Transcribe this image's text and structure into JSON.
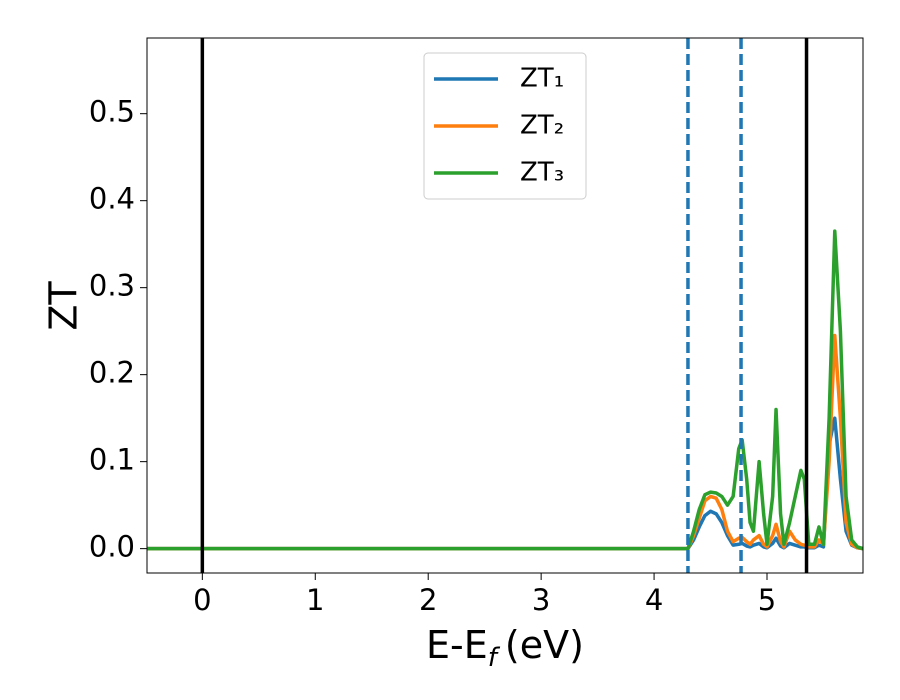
{
  "chart_data": {
    "type": "line",
    "ylabel": "ZT",
    "xlabel": {
      "text": "E-E",
      "subscript": "f",
      "suffix": "(eV)"
    },
    "x": [
      -0.49,
      4.25,
      4.3,
      4.35,
      4.4,
      4.45,
      4.5,
      4.55,
      4.6,
      4.65,
      4.7,
      4.75,
      4.78,
      4.82,
      4.85,
      4.88,
      4.93,
      4.97,
      5.0,
      5.05,
      5.08,
      5.12,
      5.15,
      5.2,
      5.25,
      5.3,
      5.33,
      5.37,
      5.42,
      5.46,
      5.5,
      5.55,
      5.6,
      5.65,
      5.7,
      5.75,
      5.8,
      5.85
    ],
    "series": [
      {
        "name": "ZT₁",
        "color": "#1f77b4",
        "values": [
          0,
          0,
          0,
          0.01,
          0.025,
          0.038,
          0.043,
          0.04,
          0.03,
          0.015,
          0.004,
          0.005,
          0.006,
          0.003,
          0.002,
          0.004,
          0.006,
          0.002,
          0.001,
          0.006,
          0.012,
          0.003,
          0.001,
          0.006,
          0.004,
          0.002,
          0.002,
          0.001,
          0.001,
          0.004,
          0.002,
          0.12,
          0.15,
          0.08,
          0.02,
          0.004,
          0.001,
          0
        ]
      },
      {
        "name": "ZT₂",
        "color": "#ff7f0e",
        "values": [
          0,
          0,
          0,
          0.015,
          0.035,
          0.055,
          0.06,
          0.058,
          0.045,
          0.02,
          0.008,
          0.012,
          0.013,
          0.008,
          0.005,
          0.01,
          0.015,
          0.005,
          0.002,
          0.015,
          0.028,
          0.008,
          0.002,
          0.02,
          0.01,
          0.005,
          0.004,
          0.002,
          0.002,
          0.01,
          0.005,
          0.1,
          0.245,
          0.15,
          0.03,
          0.005,
          0.001,
          0
        ]
      },
      {
        "name": "ZT₃",
        "color": "#2ca02c",
        "values": [
          0,
          0,
          0,
          0.02,
          0.045,
          0.062,
          0.065,
          0.064,
          0.06,
          0.05,
          0.06,
          0.115,
          0.125,
          0.08,
          0.03,
          0.02,
          0.1,
          0.04,
          0.005,
          0.06,
          0.16,
          0.04,
          0.005,
          0.03,
          0.06,
          0.09,
          0.08,
          0.005,
          0.005,
          0.025,
          0.005,
          0.15,
          0.365,
          0.25,
          0.06,
          0.01,
          0.002,
          0
        ]
      }
    ],
    "vlines": [
      {
        "x": 0,
        "color": "#000000",
        "style": "solid"
      },
      {
        "x": 5.35,
        "color": "#000000",
        "style": "solid"
      },
      {
        "x": 4.3,
        "color": "#1f77b4",
        "style": "dashed"
      },
      {
        "x": 4.77,
        "color": "#1f77b4",
        "style": "dashed"
      }
    ],
    "xlim": [
      -0.49,
      5.85
    ],
    "ylim": [
      -0.028,
      0.587
    ],
    "xticks": [
      0,
      1,
      2,
      3,
      4,
      5
    ],
    "yticks": [
      {
        "value": 0,
        "label": "0.0"
      },
      0.1,
      0.2,
      0.3,
      0.4,
      0.5
    ],
    "legend": "upper center",
    "grid": false
  }
}
